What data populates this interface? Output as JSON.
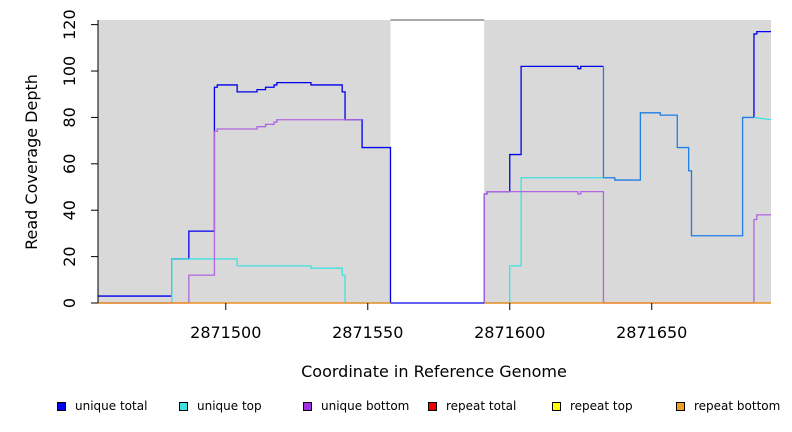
{
  "chart_data": {
    "type": "line",
    "xlabel": "Coordinate in Reference Genome",
    "ylabel": "Read Coverage Depth",
    "xlim": [
      2871455,
      2871692
    ],
    "ylim": [
      0,
      122
    ],
    "x_ticks": [
      2871500,
      2871550,
      2871600,
      2871650
    ],
    "y_ticks": [
      0,
      20,
      40,
      60,
      80,
      100,
      120
    ],
    "x_tick_labels": [
      "2871500",
      "2871550",
      "2871600",
      "2871650"
    ],
    "y_tick_labels": [
      "0",
      "20",
      "40",
      "60",
      "80",
      "100",
      "120"
    ],
    "background_color": "#d9d9d9",
    "shaded_regions": [
      [
        2871455,
        2871558
      ],
      [
        2871591,
        2871692
      ]
    ],
    "legend_position": "bottom",
    "series": [
      {
        "name": "unique total",
        "color": "#0000ee",
        "points": [
          [
            2871455,
            3
          ],
          [
            2871481,
            3
          ],
          [
            2871481,
            19
          ],
          [
            2871487,
            19
          ],
          [
            2871487,
            31
          ],
          [
            2871496,
            31
          ],
          [
            2871496,
            93
          ],
          [
            2871497,
            93
          ],
          [
            2871497,
            94
          ],
          [
            2871504,
            94
          ],
          [
            2871504,
            91
          ],
          [
            2871511,
            91
          ],
          [
            2871511,
            92
          ],
          [
            2871514,
            92
          ],
          [
            2871514,
            93
          ],
          [
            2871517,
            93
          ],
          [
            2871517,
            94
          ],
          [
            2871518,
            94
          ],
          [
            2871518,
            95
          ],
          [
            2871530,
            95
          ],
          [
            2871530,
            94
          ],
          [
            2871541,
            94
          ],
          [
            2871541,
            91
          ],
          [
            2871542,
            91
          ],
          [
            2871542,
            79
          ],
          [
            2871548,
            79
          ],
          [
            2871548,
            67
          ],
          [
            2871558,
            67
          ],
          [
            2871558,
            0
          ]
        ]
      },
      {
        "name": "unique total",
        "color": "#0000ee",
        "points": [
          [
            2871591,
            0
          ],
          [
            2871591,
            47
          ],
          [
            2871592,
            47
          ],
          [
            2871592,
            48
          ],
          [
            2871600,
            48
          ],
          [
            2871600,
            64
          ],
          [
            2871604,
            64
          ],
          [
            2871604,
            102
          ],
          [
            2871624,
            102
          ],
          [
            2871624,
            101
          ],
          [
            2871625,
            101
          ],
          [
            2871625,
            102
          ],
          [
            2871633,
            102
          ]
        ]
      },
      {
        "name": "unique total",
        "color": "#1e7ee6",
        "points": [
          [
            2871633,
            102
          ],
          [
            2871633,
            54
          ],
          [
            2871637,
            54
          ],
          [
            2871637,
            53
          ],
          [
            2871646,
            53
          ],
          [
            2871646,
            82
          ],
          [
            2871653,
            82
          ],
          [
            2871653,
            81
          ],
          [
            2871659,
            81
          ],
          [
            2871659,
            67
          ],
          [
            2871663,
            67
          ],
          [
            2871663,
            57
          ],
          [
            2871664,
            57
          ],
          [
            2871664,
            29
          ],
          [
            2871682,
            29
          ],
          [
            2871682,
            80
          ],
          [
            2871686,
            80
          ]
        ]
      },
      {
        "name": "unique total",
        "color": "#0000ee",
        "points": [
          [
            2871686,
            80
          ],
          [
            2871686,
            116
          ],
          [
            2871687,
            116
          ],
          [
            2871687,
            117
          ],
          [
            2871692,
            117
          ]
        ]
      },
      {
        "name": "unique top",
        "color": "#40e0e0",
        "points": [
          [
            2871455,
            0
          ],
          [
            2871481,
            0
          ],
          [
            2871481,
            19
          ],
          [
            2871504,
            19
          ],
          [
            2871504,
            16
          ],
          [
            2871530,
            16
          ],
          [
            2871530,
            15
          ],
          [
            2871541,
            15
          ],
          [
            2871541,
            12
          ],
          [
            2871542,
            12
          ],
          [
            2871542,
            0
          ],
          [
            2871558,
            0
          ]
        ]
      },
      {
        "name": "unique top",
        "color": "#40e0e0",
        "points": [
          [
            2871591,
            0
          ],
          [
            2871600,
            0
          ],
          [
            2871600,
            16
          ],
          [
            2871604,
            16
          ],
          [
            2871604,
            54
          ],
          [
            2871633,
            54
          ]
        ]
      },
      {
        "name": "unique top",
        "color": "#40e0e0",
        "points": [
          [
            2871686,
            80
          ],
          [
            2871692,
            79
          ]
        ]
      },
      {
        "name": "unique bottom",
        "color": "#b065e0",
        "points": [
          [
            2871455,
            0
          ],
          [
            2871487,
            0
          ],
          [
            2871487,
            12
          ],
          [
            2871496,
            12
          ],
          [
            2871496,
            74
          ],
          [
            2871497,
            74
          ],
          [
            2871497,
            75
          ],
          [
            2871511,
            75
          ],
          [
            2871511,
            76
          ],
          [
            2871514,
            76
          ],
          [
            2871514,
            77
          ],
          [
            2871517,
            77
          ],
          [
            2871517,
            78
          ],
          [
            2871518,
            78
          ],
          [
            2871518,
            79
          ],
          [
            2871548,
            79
          ]
        ]
      },
      {
        "name": "unique bottom",
        "color": "#b065e0",
        "points": [
          [
            2871591,
            0
          ],
          [
            2871591,
            47
          ],
          [
            2871592,
            47
          ],
          [
            2871592,
            48
          ],
          [
            2871624,
            48
          ],
          [
            2871624,
            47
          ],
          [
            2871625,
            47
          ],
          [
            2871625,
            48
          ],
          [
            2871633,
            48
          ],
          [
            2871633,
            0
          ],
          [
            2871686,
            0
          ],
          [
            2871686,
            36
          ],
          [
            2871687,
            36
          ],
          [
            2871687,
            38
          ],
          [
            2871692,
            38
          ]
        ]
      },
      {
        "name": "repeat total",
        "color": "#ee0000",
        "points": [
          [
            2871455,
            0
          ],
          [
            2871558,
            0
          ]
        ]
      },
      {
        "name": "repeat total",
        "color": "#ee0000",
        "points": [
          [
            2871591,
            0
          ],
          [
            2871692,
            0
          ]
        ]
      },
      {
        "name": "repeat bottom",
        "color": "#f0a020",
        "points": [
          [
            2871455,
            0
          ],
          [
            2871558,
            0
          ]
        ]
      },
      {
        "name": "repeat bottom",
        "color": "#f0a020",
        "points": [
          [
            2871591,
            0
          ],
          [
            2871692,
            0
          ]
        ]
      },
      {
        "name": "unique total",
        "color": "#0000ee",
        "points": [
          [
            2871558,
            0
          ],
          [
            2871591,
            0
          ]
        ]
      }
    ],
    "legend": [
      {
        "label": "unique total",
        "color": "#0000ee"
      },
      {
        "label": "unique top",
        "color": "#40e0e0"
      },
      {
        "label": "unique bottom",
        "color": "#a030e0"
      },
      {
        "label": "repeat total",
        "color": "#ee0000"
      },
      {
        "label": "repeat top",
        "color": "#ffff00"
      },
      {
        "label": "repeat bottom",
        "color": "#f0a020"
      }
    ]
  }
}
